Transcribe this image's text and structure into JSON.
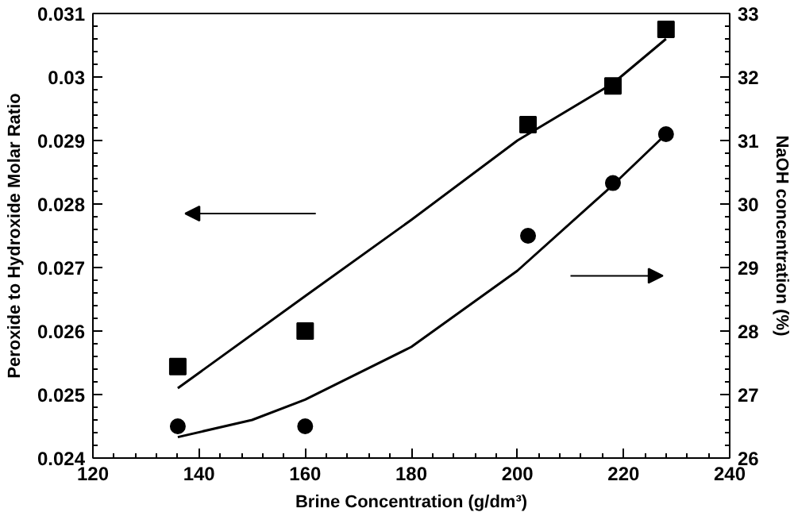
{
  "chart_data": {
    "type": "scatter",
    "xlabel": "Brine Concentration (g/dm³)",
    "ylabel": "Peroxide to Hydroxide Molar Ratio",
    "y2label": "NaOH concentration (%)",
    "xlim": [
      120,
      240
    ],
    "xticks": [
      120,
      140,
      160,
      180,
      200,
      220,
      240
    ],
    "ylim": [
      0.024,
      0.031
    ],
    "yticks": [
      0.024,
      0.025,
      0.026,
      0.027,
      0.028,
      0.029,
      0.03,
      0.031
    ],
    "y2lim": [
      26,
      33
    ],
    "y2ticks": [
      26,
      27,
      28,
      29,
      30,
      31,
      32,
      33
    ],
    "grid": false,
    "series": [
      {
        "marker": "square",
        "color": "#000000",
        "x": [
          136,
          160,
          202,
          218,
          228
        ],
        "values": [
          0.02544,
          0.026,
          0.02925,
          0.02986,
          0.03075
        ]
      },
      {
        "marker": "circle",
        "color": "#000000",
        "axis": "y2",
        "x": [
          136,
          160,
          202,
          218,
          228
        ],
        "values": [
          26.5,
          26.5,
          29.5,
          30.33,
          31.1
        ]
      },
      {
        "type": "line",
        "color": "#000000",
        "x": [
          136,
          160,
          180,
          200,
          218,
          228
        ],
        "values": [
          0.0251,
          0.02655,
          0.02775,
          0.029,
          0.0299,
          0.0306
        ]
      },
      {
        "type": "line",
        "color": "#000000",
        "axis": "y2",
        "x": [
          136,
          150,
          160,
          180,
          200,
          218,
          228
        ],
        "values": [
          26.33,
          26.6,
          26.92,
          27.75,
          28.95,
          30.3,
          31.1
        ]
      }
    ]
  }
}
